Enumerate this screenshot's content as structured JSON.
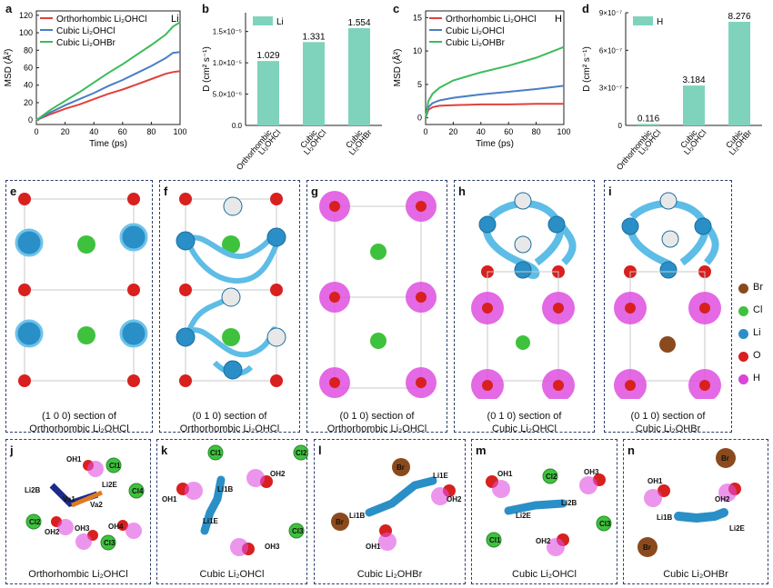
{
  "panels": {
    "a": {
      "letter": "a",
      "chart_type": "line",
      "title_tag": "Li",
      "ylabel": "MSD (Å²)",
      "xlabel": "Time (ps)",
      "xlim": [
        0,
        100
      ],
      "ylim": [
        -5,
        125
      ],
      "xticks": [
        "0",
        "20",
        "40",
        "60",
        "80",
        "100"
      ],
      "yticks": [
        "0",
        "20",
        "40",
        "60",
        "80",
        "100",
        "120"
      ],
      "series": [
        {
          "name": "Orthorhombic Li₂OHCl",
          "color": "#e0413b",
          "x": [
            0,
            10,
            20,
            30,
            40,
            50,
            60,
            70,
            80,
            90,
            95,
            100
          ],
          "y": [
            0,
            7,
            13,
            18,
            24,
            30,
            35,
            41,
            47,
            53,
            55,
            56
          ]
        },
        {
          "name": "Cubic Li₂OHCl",
          "color": "#4a7ec4",
          "x": [
            0,
            10,
            20,
            30,
            40,
            50,
            60,
            70,
            80,
            90,
            95,
            100
          ],
          "y": [
            0,
            9,
            17,
            24,
            31,
            39,
            46,
            54,
            62,
            71,
            77,
            78
          ]
        },
        {
          "name": "Cubic Li₂OHBr",
          "color": "#3dbb5a",
          "x": [
            0,
            10,
            20,
            30,
            40,
            50,
            60,
            70,
            80,
            90,
            95,
            100
          ],
          "y": [
            0,
            12,
            22,
            32,
            43,
            54,
            64,
            75,
            86,
            98,
            107,
            112
          ]
        }
      ]
    },
    "b": {
      "letter": "b",
      "chart_type": "bar",
      "legend": "Li",
      "ylabel": "D (cm² s⁻¹)",
      "ylim": [
        0,
        1.8
      ],
      "yticks": [
        "0.0",
        "5.0×10⁻⁶",
        "1.0×10⁻⁵",
        "1.5×10⁻⁵"
      ],
      "categories": [
        "Orthorhombic Li₂OHCl",
        "Cubic Li₂OHCl",
        "Cubic Li₂OHBr"
      ],
      "values": [
        1.029,
        1.331,
        1.554
      ],
      "labels": [
        "1.029",
        "1.331",
        "1.554"
      ],
      "color": "#7fd3bd"
    },
    "c": {
      "letter": "c",
      "chart_type": "line",
      "title_tag": "H",
      "ylabel": "MSD (Å²)",
      "xlabel": "Time (ps)",
      "xlim": [
        0,
        100
      ],
      "ylim": [
        -1,
        16
      ],
      "xticks": [
        "0",
        "20",
        "40",
        "60",
        "80",
        "100"
      ],
      "yticks": [
        "0",
        "5",
        "10",
        "15"
      ],
      "series": [
        {
          "name": "Orthorhombic Li₂OHCl",
          "color": "#e0413b",
          "x": [
            0,
            2,
            5,
            10,
            20,
            40,
            60,
            80,
            100
          ],
          "y": [
            0,
            1.2,
            1.6,
            1.8,
            1.9,
            2.0,
            2.0,
            2.1,
            2.1
          ]
        },
        {
          "name": "Cubic Li₂OHCl",
          "color": "#4a7ec4",
          "x": [
            0,
            2,
            5,
            10,
            20,
            40,
            60,
            80,
            100
          ],
          "y": [
            0,
            1.6,
            2.2,
            2.6,
            3.0,
            3.5,
            3.9,
            4.3,
            4.8
          ]
        },
        {
          "name": "Cubic Li₂OHBr",
          "color": "#3dbb5a",
          "x": [
            0,
            2,
            5,
            10,
            20,
            40,
            60,
            80,
            100
          ],
          "y": [
            0,
            2.5,
            3.6,
            4.5,
            5.6,
            6.8,
            7.8,
            9.0,
            10.6
          ]
        }
      ]
    },
    "d": {
      "letter": "d",
      "chart_type": "bar",
      "legend": "H",
      "ylabel": "D (cm² s⁻¹)",
      "ylim": [
        0,
        9.0
      ],
      "yticks": [
        "0",
        "3×10⁻⁷",
        "6×10⁻⁷",
        "9×10⁻⁷"
      ],
      "categories": [
        "Orthorhombic Li₂OHCl",
        "Cubic Li₂OHCl",
        "Cubic Li₂OHBr"
      ],
      "values": [
        0.116,
        3.184,
        8.276
      ],
      "labels": [
        "0.116",
        "3.184",
        "8.276"
      ],
      "color": "#7fd3bd"
    }
  },
  "structures": {
    "e": {
      "letter": "e",
      "caption1": "(1 0 0) section of",
      "caption2": "Orthorhombic Li₂OHCl"
    },
    "f": {
      "letter": "f",
      "caption1": "(0 1 0) section of",
      "caption2": "Orthorhombic Li₂OHCl"
    },
    "g": {
      "letter": "g",
      "caption1": "(0 1 0) section of",
      "caption2": "Orthorhombic Li₂OHCl"
    },
    "h": {
      "letter": "h",
      "caption1": "(0 1 0) section of",
      "caption2": "Cubic Li₂OHCl"
    },
    "i": {
      "letter": "i",
      "caption1": "(0 1 0) section of",
      "caption2": "Cubic Li₂OHBr"
    }
  },
  "legend_atoms": [
    {
      "name": "Br",
      "color": "#8b4a1d"
    },
    {
      "name": "Cl",
      "color": "#3ec23e"
    },
    {
      "name": "Li",
      "color": "#2a8fc6"
    },
    {
      "name": "O",
      "color": "#d8201f"
    },
    {
      "name": "H",
      "color": "#d845d8"
    }
  ],
  "mechanisms": {
    "j": {
      "letter": "j",
      "caption": "Orthorhombic Li₂OHCl",
      "labels": [
        "OH1",
        "Cl1",
        "Li2B",
        "Va1",
        "Li2E",
        "Va2",
        "Cl4",
        "Cl2",
        "OH2",
        "OH3",
        "OH4",
        "Cl3"
      ]
    },
    "k": {
      "letter": "k",
      "caption": "Cubic Li₂OHCl",
      "labels": [
        "Cl1",
        "Cl2",
        "OH2",
        "Li1B",
        "OH1",
        "Li1E",
        "Cl3",
        "OH3"
      ]
    },
    "l": {
      "letter": "l",
      "caption": "Cubic Li₂OHBr",
      "labels": [
        "Br",
        "Li1E",
        "OH2",
        "Li1B",
        "Br",
        "OH1"
      ]
    },
    "m": {
      "letter": "m",
      "caption": "Cubic Li₂OHCl",
      "labels": [
        "OH1",
        "Cl2",
        "OH3",
        "Li2B",
        "Li2E",
        "Cl1",
        "OH2",
        "Cl3"
      ]
    },
    "n": {
      "letter": "n",
      "caption": "Cubic Li₂OHBr",
      "labels": [
        "Br",
        "OH1",
        "OH2",
        "Li1B",
        "Li2E",
        "Br"
      ]
    }
  }
}
